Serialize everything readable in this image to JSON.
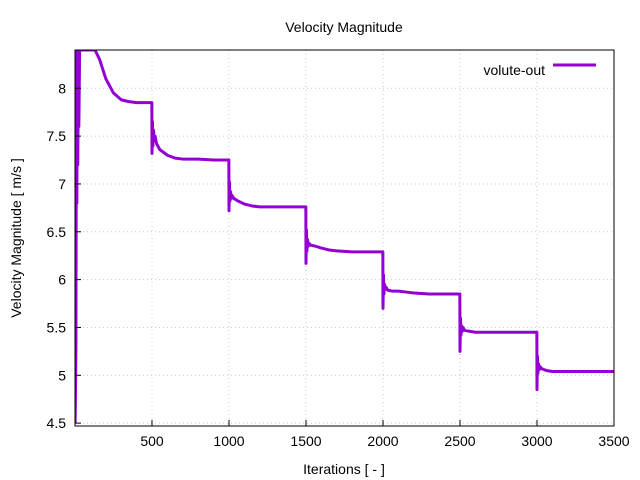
{
  "chart_data": {
    "type": "line",
    "title": "Velocity Magnitude",
    "xlabel": "Iterations [ - ]",
    "ylabel": "Velocity Magnitude [ m/s ]",
    "xlim": [
      0,
      3500
    ],
    "ylim": [
      4.47,
      8.4
    ],
    "xticks": [
      500,
      1000,
      1500,
      2000,
      2500,
      3000,
      3500
    ],
    "yticks": [
      4.5,
      5,
      5.5,
      6,
      6.5,
      7,
      7.5,
      8
    ],
    "xtick_labels": [
      "500",
      "1000",
      "1500",
      "2000",
      "2500",
      "3000",
      "3500"
    ],
    "ytick_labels": [
      "4.5",
      "5",
      "5.5",
      "6",
      "6.5",
      "7",
      "7.5",
      "8"
    ],
    "grid": true,
    "legend_position": "top-right",
    "series": [
      {
        "name": "volute-out",
        "color": "#9400d3",
        "x": [
          1,
          6,
          8,
          10,
          12,
          15,
          18,
          22,
          25,
          30,
          40,
          60,
          80,
          100,
          130,
          160,
          200,
          250,
          300,
          350,
          400,
          450,
          499,
          500,
          503,
          506,
          510,
          515,
          520,
          530,
          550,
          600,
          650,
          700,
          800,
          900,
          999,
          1000,
          1003,
          1006,
          1010,
          1015,
          1020,
          1030,
          1060,
          1100,
          1150,
          1200,
          1300,
          1400,
          1499,
          1500,
          1503,
          1506,
          1510,
          1515,
          1520,
          1530,
          1560,
          1600,
          1650,
          1700,
          1800,
          1900,
          1999,
          2000,
          2003,
          2006,
          2010,
          2015,
          2020,
          2030,
          2060,
          2100,
          2150,
          2200,
          2300,
          2400,
          2499,
          2500,
          2503,
          2506,
          2510,
          2515,
          2520,
          2530,
          2560,
          2600,
          2650,
          2700,
          2800,
          2900,
          2999,
          3000,
          3003,
          3006,
          3010,
          3015,
          3020,
          3030,
          3060,
          3100,
          3150,
          3200,
          3300,
          3400,
          3500
        ],
        "y": [
          4.5,
          5.3,
          7.0,
          8.4,
          6.8,
          8.4,
          7.2,
          8.4,
          7.6,
          8.4,
          8.4,
          8.4,
          8.4,
          8.4,
          8.4,
          8.3,
          8.1,
          7.95,
          7.88,
          7.86,
          7.85,
          7.85,
          7.85,
          7.32,
          7.65,
          7.4,
          7.56,
          7.45,
          7.5,
          7.42,
          7.36,
          7.3,
          7.27,
          7.26,
          7.26,
          7.25,
          7.25,
          6.72,
          7.02,
          6.82,
          6.92,
          6.85,
          6.88,
          6.85,
          6.82,
          6.79,
          6.77,
          6.76,
          6.76,
          6.76,
          6.76,
          6.17,
          6.52,
          6.3,
          6.42,
          6.35,
          6.38,
          6.36,
          6.35,
          6.33,
          6.31,
          6.3,
          6.29,
          6.29,
          6.29,
          5.7,
          6.05,
          5.85,
          5.95,
          5.9,
          5.92,
          5.89,
          5.88,
          5.88,
          5.87,
          5.86,
          5.85,
          5.85,
          5.85,
          5.25,
          5.6,
          5.42,
          5.52,
          5.46,
          5.5,
          5.47,
          5.46,
          5.45,
          5.45,
          5.45,
          5.45,
          5.45,
          5.45,
          4.85,
          5.2,
          5.02,
          5.12,
          5.06,
          5.09,
          5.07,
          5.05,
          5.04,
          5.04,
          5.04,
          5.04,
          5.04,
          5.04
        ]
      }
    ]
  }
}
